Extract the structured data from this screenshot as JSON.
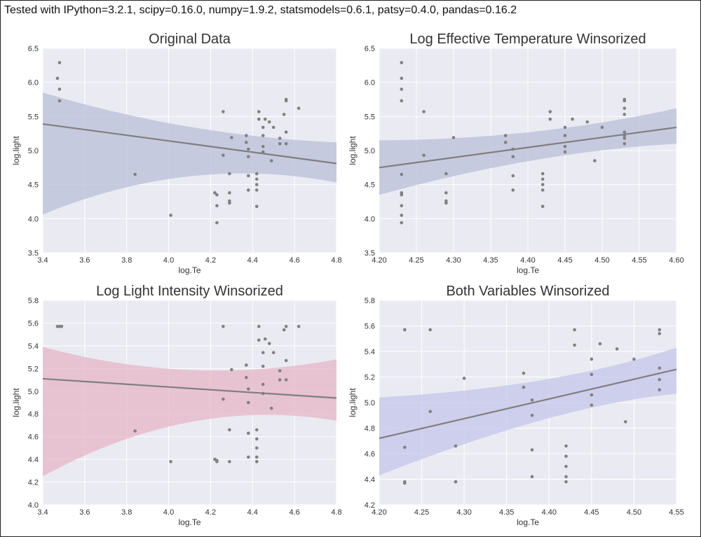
{
  "header_note": "Tested with IPython=3.2.1, scipy=0.16.0, numpy=1.9.2, statsmodels=0.6.1, patsy=0.4.0, pandas=0.16.2",
  "colors": {
    "plot_background": "#eaeaf2",
    "grid": "#ffffff",
    "points": "#808080",
    "regression_line": "#7f7f7f",
    "band_blue": "#b8bfd8",
    "band_pink": "#e6b5c6",
    "band_lavender": "#c4c6ea"
  },
  "chart_data": [
    {
      "type": "scatter",
      "title": "Original Data",
      "xlabel": "log.Te",
      "ylabel": "log.light",
      "xlim": [
        3.4,
        4.8
      ],
      "ylim": [
        3.5,
        6.5
      ],
      "xticks": [
        3.4,
        3.6,
        3.8,
        4.0,
        4.2,
        4.4,
        4.6,
        4.8
      ],
      "yticks": [
        3.5,
        4.0,
        4.5,
        5.0,
        5.5,
        6.0,
        6.5
      ],
      "tick_decimals": 1,
      "grid": true,
      "band_color": "band_blue",
      "regression": {
        "x": [
          3.4,
          4.8
        ],
        "y": [
          5.39,
          4.81
        ]
      },
      "band": {
        "x": [
          3.4,
          4.1,
          4.8
        ],
        "upper": [
          5.85,
          5.21,
          5.12
        ],
        "lower": [
          4.06,
          4.95,
          4.53
        ]
      },
      "points": [
        [
          3.48,
          6.29
        ],
        [
          3.48,
          5.9
        ],
        [
          3.47,
          6.06
        ],
        [
          3.48,
          5.73
        ],
        [
          3.84,
          4.65
        ],
        [
          4.01,
          4.05
        ],
        [
          4.22,
          4.38
        ],
        [
          4.23,
          4.35
        ],
        [
          4.23,
          4.19
        ],
        [
          4.23,
          3.94
        ],
        [
          4.26,
          5.57
        ],
        [
          4.26,
          4.93
        ],
        [
          4.29,
          4.66
        ],
        [
          4.29,
          4.38
        ],
        [
          4.29,
          4.26
        ],
        [
          4.29,
          4.23
        ],
        [
          4.3,
          5.19
        ],
        [
          4.37,
          5.22
        ],
        [
          4.37,
          5.12
        ],
        [
          4.38,
          5.02
        ],
        [
          4.38,
          4.91
        ],
        [
          4.38,
          4.63
        ],
        [
          4.38,
          4.42
        ],
        [
          4.42,
          4.66
        ],
        [
          4.42,
          4.58
        ],
        [
          4.42,
          4.5
        ],
        [
          4.42,
          4.42
        ],
        [
          4.42,
          4.18
        ],
        [
          4.43,
          5.57
        ],
        [
          4.43,
          5.46
        ],
        [
          4.45,
          5.34
        ],
        [
          4.45,
          5.22
        ],
        [
          4.45,
          5.06
        ],
        [
          4.45,
          4.98
        ],
        [
          4.46,
          5.46
        ],
        [
          4.48,
          5.42
        ],
        [
          4.49,
          4.85
        ],
        [
          4.5,
          5.34
        ],
        [
          4.53,
          5.18
        ],
        [
          4.53,
          5.1
        ],
        [
          4.55,
          5.53
        ],
        [
          4.56,
          5.75
        ],
        [
          4.56,
          5.73
        ],
        [
          4.56,
          5.27
        ],
        [
          4.56,
          5.1
        ],
        [
          4.62,
          5.62
        ]
      ]
    },
    {
      "type": "scatter",
      "title": "Log Effective Temperature Winsorized",
      "xlabel": "log.Te",
      "ylabel": "log.light",
      "xlim": [
        4.2,
        4.6
      ],
      "ylim": [
        3.5,
        6.5
      ],
      "xticks": [
        4.2,
        4.25,
        4.3,
        4.35,
        4.4,
        4.45,
        4.5,
        4.55,
        4.6
      ],
      "yticks": [
        3.5,
        4.0,
        4.5,
        5.0,
        5.5,
        6.0,
        6.5
      ],
      "tick_decimals": 2,
      "y_tick_decimals": 1,
      "grid": true,
      "band_color": "band_blue",
      "regression": {
        "x": [
          4.2,
          4.6
        ],
        "y": [
          4.75,
          5.34
        ]
      },
      "band": {
        "x": [
          4.2,
          4.41,
          4.6
        ],
        "upper": [
          5.15,
          5.16,
          5.62
        ],
        "lower": [
          4.35,
          4.98,
          5.1
        ]
      },
      "points": [
        [
          4.23,
          6.29
        ],
        [
          4.23,
          6.06
        ],
        [
          4.23,
          5.9
        ],
        [
          4.23,
          5.73
        ],
        [
          4.23,
          4.65
        ],
        [
          4.23,
          4.38
        ],
        [
          4.23,
          4.35
        ],
        [
          4.23,
          4.19
        ],
        [
          4.23,
          4.05
        ],
        [
          4.23,
          3.94
        ],
        [
          4.26,
          5.57
        ],
        [
          4.26,
          4.93
        ],
        [
          4.29,
          4.66
        ],
        [
          4.29,
          4.38
        ],
        [
          4.29,
          4.26
        ],
        [
          4.29,
          4.23
        ],
        [
          4.3,
          5.19
        ],
        [
          4.37,
          5.22
        ],
        [
          4.37,
          5.12
        ],
        [
          4.38,
          5.02
        ],
        [
          4.38,
          4.91
        ],
        [
          4.38,
          4.63
        ],
        [
          4.38,
          4.42
        ],
        [
          4.42,
          4.66
        ],
        [
          4.42,
          4.58
        ],
        [
          4.42,
          4.5
        ],
        [
          4.42,
          4.42
        ],
        [
          4.42,
          4.18
        ],
        [
          4.43,
          5.57
        ],
        [
          4.43,
          5.46
        ],
        [
          4.45,
          5.34
        ],
        [
          4.45,
          5.22
        ],
        [
          4.45,
          5.06
        ],
        [
          4.45,
          4.98
        ],
        [
          4.46,
          5.46
        ],
        [
          4.48,
          5.42
        ],
        [
          4.49,
          4.85
        ],
        [
          4.5,
          5.34
        ],
        [
          4.53,
          5.75
        ],
        [
          4.53,
          5.73
        ],
        [
          4.53,
          5.62
        ],
        [
          4.53,
          5.53
        ],
        [
          4.53,
          5.27
        ],
        [
          4.53,
          5.22
        ],
        [
          4.53,
          5.18
        ],
        [
          4.53,
          5.1
        ]
      ]
    },
    {
      "type": "scatter",
      "title": "Log Light Intensity Winsorized",
      "xlabel": "log.Te",
      "ylabel": "log.light",
      "xlim": [
        3.4,
        4.8
      ],
      "ylim": [
        4.0,
        5.8
      ],
      "xticks": [
        3.4,
        3.6,
        3.8,
        4.0,
        4.2,
        4.4,
        4.6,
        4.8
      ],
      "yticks": [
        4.0,
        4.2,
        4.4,
        4.6,
        4.8,
        5.0,
        5.2,
        5.4,
        5.6,
        5.8
      ],
      "tick_decimals": 1,
      "grid": true,
      "band_color": "band_pink",
      "regression": {
        "x": [
          3.4,
          4.8
        ],
        "y": [
          5.11,
          4.94
        ]
      },
      "band": {
        "x": [
          3.4,
          4.1,
          4.8
        ],
        "upper": [
          5.39,
          5.04,
          5.28
        ],
        "lower": [
          4.25,
          4.96,
          4.74
        ]
      },
      "points": [
        [
          3.48,
          5.57
        ],
        [
          3.47,
          5.57
        ],
        [
          3.49,
          5.57
        ],
        [
          3.84,
          4.65
        ],
        [
          4.01,
          4.38
        ],
        [
          4.22,
          4.4
        ],
        [
          4.23,
          4.39
        ],
        [
          4.23,
          4.38
        ],
        [
          4.26,
          5.57
        ],
        [
          4.26,
          4.93
        ],
        [
          4.29,
          4.66
        ],
        [
          4.29,
          4.38
        ],
        [
          4.3,
          5.19
        ],
        [
          4.37,
          5.23
        ],
        [
          4.37,
          5.12
        ],
        [
          4.38,
          5.02
        ],
        [
          4.38,
          4.9
        ],
        [
          4.38,
          4.63
        ],
        [
          4.38,
          4.42
        ],
        [
          4.42,
          4.66
        ],
        [
          4.42,
          4.58
        ],
        [
          4.42,
          4.5
        ],
        [
          4.42,
          4.42
        ],
        [
          4.42,
          4.38
        ],
        [
          4.43,
          5.57
        ],
        [
          4.43,
          5.45
        ],
        [
          4.45,
          5.34
        ],
        [
          4.45,
          5.22
        ],
        [
          4.45,
          5.06
        ],
        [
          4.45,
          4.98
        ],
        [
          4.46,
          5.46
        ],
        [
          4.48,
          5.42
        ],
        [
          4.49,
          4.85
        ],
        [
          4.5,
          5.34
        ],
        [
          4.53,
          5.18
        ],
        [
          4.53,
          5.1
        ],
        [
          4.55,
          5.54
        ],
        [
          4.56,
          5.57
        ],
        [
          4.56,
          5.27
        ],
        [
          4.56,
          5.1
        ],
        [
          4.62,
          5.57
        ]
      ]
    },
    {
      "type": "scatter",
      "title": "Both Variables Winsorized",
      "xlabel": "log.Te",
      "ylabel": "log.light",
      "xlim": [
        4.2,
        4.55
      ],
      "ylim": [
        4.2,
        5.8
      ],
      "xticks": [
        4.2,
        4.25,
        4.3,
        4.35,
        4.4,
        4.45,
        4.5,
        4.55
      ],
      "yticks": [
        4.2,
        4.4,
        4.6,
        4.8,
        5.0,
        5.2,
        5.4,
        5.6,
        5.8
      ],
      "tick_decimals": 2,
      "y_tick_decimals": 1,
      "grid": true,
      "band_color": "band_lavender",
      "regression": {
        "x": [
          4.2,
          4.55
        ],
        "y": [
          4.72,
          5.26
        ]
      },
      "band": {
        "x": [
          4.2,
          4.41,
          4.55
        ],
        "upper": [
          5.04,
          5.12,
          5.43
        ],
        "lower": [
          4.43,
          4.98,
          5.07
        ]
      },
      "points": [
        [
          4.23,
          5.57
        ],
        [
          4.23,
          5.57
        ],
        [
          4.23,
          4.65
        ],
        [
          4.23,
          4.38
        ],
        [
          4.23,
          4.37
        ],
        [
          4.26,
          5.57
        ],
        [
          4.26,
          4.93
        ],
        [
          4.29,
          4.66
        ],
        [
          4.29,
          4.38
        ],
        [
          4.29,
          4.38
        ],
        [
          4.3,
          5.19
        ],
        [
          4.37,
          5.23
        ],
        [
          4.37,
          5.12
        ],
        [
          4.38,
          5.02
        ],
        [
          4.38,
          4.9
        ],
        [
          4.38,
          4.63
        ],
        [
          4.38,
          4.42
        ],
        [
          4.42,
          4.66
        ],
        [
          4.42,
          4.58
        ],
        [
          4.42,
          4.5
        ],
        [
          4.42,
          4.42
        ],
        [
          4.42,
          4.38
        ],
        [
          4.43,
          5.57
        ],
        [
          4.43,
          5.45
        ],
        [
          4.45,
          5.34
        ],
        [
          4.45,
          5.22
        ],
        [
          4.45,
          5.06
        ],
        [
          4.45,
          4.98
        ],
        [
          4.46,
          5.46
        ],
        [
          4.48,
          5.42
        ],
        [
          4.49,
          4.85
        ],
        [
          4.5,
          5.34
        ],
        [
          4.53,
          5.57
        ],
        [
          4.53,
          5.54
        ],
        [
          4.53,
          5.27
        ],
        [
          4.53,
          5.18
        ],
        [
          4.53,
          5.1
        ]
      ]
    }
  ]
}
